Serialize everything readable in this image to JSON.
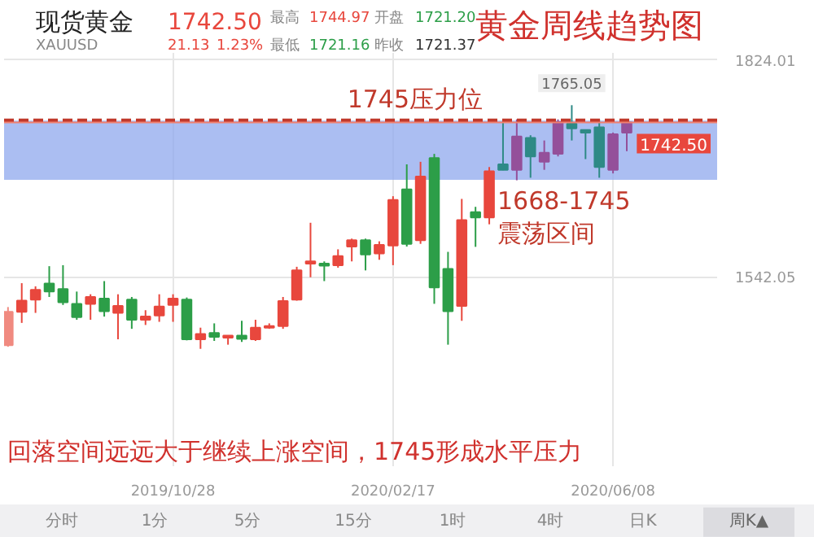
{
  "chart_data": {
    "type": "candlestick",
    "title": "黄金周线趋势图",
    "x": [
      "2019-08-05",
      "2019-08-12",
      "2019-08-19",
      "2019-08-26",
      "2019-09-02",
      "2019-09-09",
      "2019-09-16",
      "2019-09-23",
      "2019-09-30",
      "2019-10-07",
      "2019-10-14",
      "2019-10-21",
      "2019-10-28",
      "2019-11-04",
      "2019-11-11",
      "2019-11-18",
      "2019-11-25",
      "2019-12-02",
      "2019-12-09",
      "2019-12-16",
      "2019-12-23",
      "2019-12-30",
      "2020-01-06",
      "2020-01-13",
      "2020-01-20",
      "2020-01-27",
      "2020-02-03",
      "2020-02-10",
      "2020-02-17",
      "2020-02-24",
      "2020-03-02",
      "2020-03-09",
      "2020-03-16",
      "2020-03-23",
      "2020-03-30",
      "2020-04-06",
      "2020-04-13",
      "2020-04-20",
      "2020-04-27",
      "2020-05-04",
      "2020-05-11",
      "2020-05-18",
      "2020-05-25",
      "2020-06-01",
      "2020-06-08",
      "2020-06-15"
    ],
    "ohlc": [
      [
        1453.3,
        1502.8,
        1451.2,
        1496.6
      ],
      [
        1496.6,
        1533.8,
        1482.2,
        1511.1
      ],
      [
        1512.5,
        1529.7,
        1495.2,
        1525.0
      ],
      [
        1533.2,
        1555.9,
        1515.9,
        1522.9
      ],
      [
        1526.2,
        1557.2,
        1505.5,
        1509.0
      ],
      [
        1507.0,
        1522.9,
        1486.3,
        1489.8
      ],
      [
        1507.0,
        1519.4,
        1486.3,
        1515.9
      ],
      [
        1513.8,
        1536.5,
        1490.4,
        1497.3
      ],
      [
        1495.2,
        1519.4,
        1460.9,
        1504.3
      ],
      [
        1512.5,
        1515.9,
        1474.5,
        1486.3
      ],
      [
        1486.3,
        1498.7,
        1479.5,
        1490.4
      ],
      [
        1491.9,
        1519.4,
        1483.6,
        1503.5
      ],
      [
        1505.5,
        1519.4,
        1483.6,
        1513.8
      ],
      [
        1512.5,
        1515.2,
        1459.5,
        1460.9
      ],
      [
        1460.9,
        1476.0,
        1448.5,
        1467.7
      ],
      [
        1469.2,
        1481.6,
        1458.8,
        1464.2
      ],
      [
        1463.0,
        1466.0,
        1453.9,
        1465.7
      ],
      [
        1465.7,
        1484.9,
        1457.4,
        1461.5
      ],
      [
        1460.9,
        1486.3,
        1458.8,
        1476.0
      ],
      [
        1476.0,
        1481.6,
        1474.5,
        1478.1
      ],
      [
        1478.1,
        1515.9,
        1474.5,
        1510.5
      ],
      [
        1512.5,
        1555.1,
        1511.1,
        1550.4
      ],
      [
        1559.2,
        1612.3,
        1541.5,
        1562.1
      ],
      [
        1559.2,
        1562.1,
        1536.5,
        1556.6
      ],
      [
        1557.2,
        1577.8,
        1553.9,
        1568.9
      ],
      [
        1581.4,
        1591.7,
        1562.1,
        1589.6
      ],
      [
        1589.6,
        1591.7,
        1550.4,
        1571.0
      ],
      [
        1572.5,
        1588.2,
        1564.2,
        1583.4
      ],
      [
        1582.8,
        1646.8,
        1557.2,
        1641.9
      ],
      [
        1655.7,
        1688.2,
        1581.4,
        1584.9
      ],
      [
        1589.6,
        1691.5,
        1584.9,
        1672.3
      ],
      [
        1696.4,
        1701.8,
        1507.0,
        1528.3
      ],
      [
        1552.4,
        1574.5,
        1453.9,
        1497.3
      ],
      [
        1504.3,
        1643.3,
        1484.9,
        1615.8
      ],
      [
        1626.2,
        1633.0,
        1581.0,
        1619.2
      ],
      [
        1619.2,
        1684.7,
        1610.3,
        1679.1
      ],
      [
        1688.2,
        1746.6,
        1680.5,
        1681.1
      ],
      [
        1681.1,
        1746.6,
        1667.5,
        1724.5
      ],
      [
        1722.5,
        1726.0,
        1670.8,
        1698.5
      ],
      [
        1691.5,
        1719.2,
        1681.1,
        1703.2
      ],
      [
        1701.8,
        1746.6,
        1698.5,
        1743.1
      ],
      [
        1741.1,
        1765.05,
        1719.2,
        1734.9
      ],
      [
        1732.8,
        1732.8,
        1695.0,
        1729.5
      ],
      [
        1736.3,
        1746.6,
        1670.8,
        1684.7
      ],
      [
        1681.1,
        1729.5,
        1676.4,
        1727.4
      ],
      [
        1729.5,
        1746.6,
        1705.3,
        1742.5
      ]
    ],
    "colors": [
      "#f08a80",
      "#e8473d",
      "#e8473d",
      "#2c9e48",
      "#2c9e48",
      "#2c9e48",
      "#e8473d",
      "#2c9e48",
      "#e8473d",
      "#2c9e48",
      "#e8473d",
      "#e8473d",
      "#e8473d",
      "#2c9e48",
      "#e8473d",
      "#2c9e48",
      "#e8473d",
      "#2c9e48",
      "#e8473d",
      "#e8473d",
      "#e8473d",
      "#e8473d",
      "#e8473d",
      "#2c9e48",
      "#e8473d",
      "#e8473d",
      "#2c9e48",
      "#e8473d",
      "#e8473d",
      "#2c9e48",
      "#e8473d",
      "#2c9e48",
      "#2c9e48",
      "#e8473d",
      "#2c9e48",
      "#e8473d",
      "#2e8a86",
      "#94509a",
      "#2e8a86",
      "#94509a",
      "#94509a",
      "#2e8a86",
      "#2e8a86",
      "#2e8a86",
      "#94509a",
      "#94509a"
    ],
    "xlim": [
      "2019-08-03",
      "2020-07-31"
    ],
    "xticks": [
      {
        "value": "2019-10-28",
        "label": "2019/10/28"
      },
      {
        "value": "2020-02-17",
        "label": "2020/02/17"
      },
      {
        "value": "2020-06-08",
        "label": "2020/06/08"
      }
    ],
    "ylim": [
      1296,
      1833
    ],
    "yticks": [
      1542.05,
      1824.01
    ],
    "grid": true,
    "ref_lines": [
      {
        "axis": "y",
        "value": 1745,
        "label": "1745压力位",
        "color": "#c0392b",
        "line_style": "dashed"
      },
      {
        "axis": "y",
        "value": 1742.5,
        "label": "1742.50",
        "color": "#f08070",
        "line_style": "solid"
      }
    ],
    "bands": [
      {
        "axis": "y",
        "from": 1668,
        "to": 1745,
        "label": "1668-1745\n震荡区间",
        "color": "#8fa8ee"
      }
    ],
    "annotations": [
      "现货黄金",
      "XAUUSD",
      "1742.50",
      "21.13",
      "1.23%",
      "最高",
      "1744.97",
      "开盘",
      "1721.20",
      "最低",
      "1721.16",
      "昨收",
      "1721.37",
      {
        "text": "1765.05",
        "x": "2020-05-18",
        "y": 1765.05
      },
      "回落空间远远大于继续上涨空间，1745形成水平压力",
      "分时",
      "1分",
      "5分",
      "15分",
      "1时",
      "4时",
      "日K",
      "周K▲"
    ]
  }
}
